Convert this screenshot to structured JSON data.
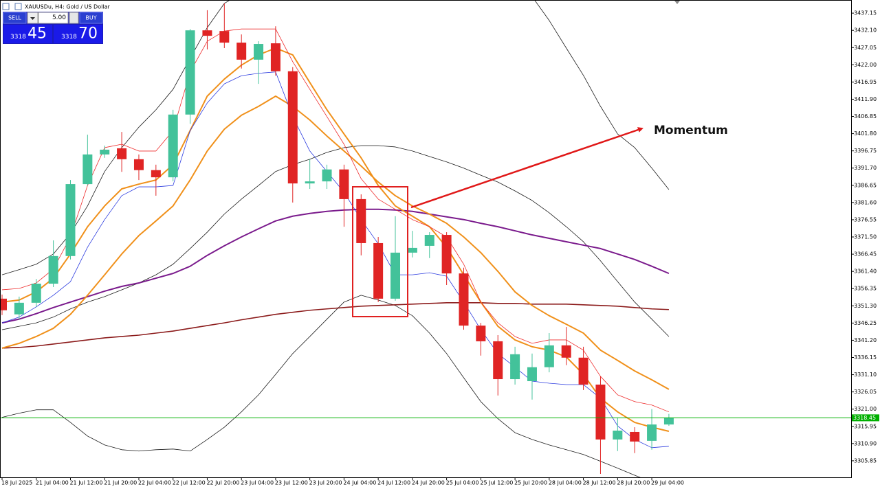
{
  "window": {
    "title": "XAUUSDu, H4:  Gold / US Dollar"
  },
  "trade_panel": {
    "sell": "SELL",
    "buy": "BUY",
    "lot": "5.00",
    "bid_main": "3318",
    "bid_pips": "45",
    "ask_main": "3318",
    "ask_pips": "70"
  },
  "chart_data": {
    "type": "candlestick",
    "annotation": "Momentum",
    "up_color": "#43c29a",
    "down_color": "#e02424",
    "categories": [
      "18 Jul 2025",
      null,
      "21 Jul 04:00",
      null,
      "21 Jul 12:00",
      null,
      "21 Jul 20:00",
      null,
      "22 Jul 04:00",
      null,
      "22 Jul 12:00",
      null,
      "22 Jul 20:00",
      null,
      "23 Jul 04:00",
      null,
      "23 Jul 12:00",
      null,
      "23 Jul 20:00",
      null,
      "24 Jul 04:00",
      null,
      "24 Jul 12:00",
      null,
      "24 Jul 20:00",
      null,
      "25 Jul 04:00",
      null,
      "25 Jul 12:00",
      null,
      "25 Jul 20:00",
      null,
      "28 Jul 04:00",
      null,
      "28 Jul 12:00",
      null,
      "28 Jul 20:00",
      null,
      "29 Jul 04:00",
      null
    ],
    "open": [
      3353.4,
      3348.8,
      3352.2,
      3357.8,
      3365.9,
      3387.0,
      3395.7,
      3397.5,
      3394.3,
      3391.1,
      3389.0,
      3407.4,
      3432.1,
      3431.9,
      3428.5,
      3423.5,
      3428.3,
      3420.1,
      3387.2,
      3387.8,
      3391.3,
      3382.6,
      3369.7,
      3353.4,
      3366.9,
      3368.9,
      3372.1,
      3360.8,
      3345.5,
      3340.9,
      3329.8,
      3329.2,
      3333.3,
      3339.7,
      3336.1,
      3328.2,
      3312.1,
      3314.3,
      3311.7,
      3316.5
    ],
    "high": [
      3354.6,
      3354.0,
      3359.2,
      3370.5,
      3388.2,
      3401.5,
      3398.3,
      3402.3,
      3395.7,
      3392.7,
      3408.8,
      3432.5,
      3438.0,
      3440.0,
      3430.9,
      3428.9,
      3433.3,
      3421.3,
      3394.3,
      3392.7,
      3392.7,
      3384.0,
      3371.5,
      3377.6,
      3373.3,
      3372.9,
      3372.9,
      3362.5,
      3346.3,
      3342.7,
      3339.3,
      3337.3,
      3343.3,
      3345.1,
      3339.3,
      3330.6,
      3318.5,
      3315.7,
      3321.0,
      3319.6
    ],
    "low": [
      3348.6,
      3347.3,
      3351.0,
      3356.8,
      3364.9,
      3386.6,
      3394.7,
      3390.6,
      3388.2,
      3383.6,
      3387.8,
      3404.7,
      3426.5,
      3426.9,
      3420.9,
      3416.4,
      3418.8,
      3381.6,
      3385.6,
      3385.6,
      3374.5,
      3366.1,
      3352.4,
      3352.8,
      3365.5,
      3365.3,
      3357.4,
      3344.3,
      3336.7,
      3325.0,
      3328.2,
      3323.8,
      3331.8,
      3333.9,
      3326.6,
      3302.0,
      3308.7,
      3308.1,
      3309.1,
      3316.1
    ],
    "close": [
      3350.0,
      3352.2,
      3357.8,
      3365.9,
      3387.0,
      3395.7,
      3397.1,
      3394.3,
      3391.1,
      3389.0,
      3407.4,
      3432.1,
      3430.5,
      3428.5,
      3423.5,
      3428.1,
      3420.1,
      3387.2,
      3387.8,
      3391.3,
      3382.6,
      3369.7,
      3353.4,
      3366.9,
      3368.3,
      3372.1,
      3360.8,
      3345.5,
      3340.9,
      3329.8,
      3337.1,
      3333.3,
      3339.7,
      3336.1,
      3328.2,
      3312.1,
      3314.7,
      3311.5,
      3316.5,
      3318.45
    ],
    "indicators": [
      {
        "color": "#1a1a1a",
        "width": 0.8,
        "values": [
          3360.4,
          3361.9,
          3363.5,
          3366.5,
          3372.5,
          3380.6,
          3390.7,
          3397.7,
          3403.7,
          3408.8,
          3414.8,
          3423.9,
          3432.9,
          3440.0,
          3443.0,
          null,
          null,
          null,
          null,
          null,
          null,
          null,
          null,
          null,
          null,
          null,
          null,
          null,
          null,
          null,
          null,
          3442.0,
          3435.0,
          3426.9,
          3418.9,
          3409.8,
          3401.7,
          3397.7,
          3391.7,
          3385.4
        ]
      },
      {
        "color": "#1a1a1a",
        "width": 0.8,
        "values": [
          3318.6,
          3319.8,
          3320.8,
          3320.8,
          3317.1,
          3313.1,
          3310.5,
          3309.1,
          3308.7,
          3309.1,
          3309.3,
          3308.7,
          3312.1,
          3315.7,
          3320.2,
          3325.2,
          3331.2,
          3337.3,
          3342.3,
          3347.4,
          3352.4,
          3354.4,
          3353.0,
          3351.4,
          3348.4,
          3343.3,
          3337.3,
          3330.2,
          3323.2,
          3318.2,
          3314.1,
          3312.1,
          3310.5,
          3309.1,
          3307.7,
          3305.7,
          3303.7,
          3301.6,
          3299.6,
          3297.6
        ]
      },
      {
        "color": "#1a1a1a",
        "width": 0.8,
        "values": [
          3344.3,
          3345.3,
          3346.3,
          3348.0,
          3350.4,
          3352.4,
          3354.0,
          3356.0,
          3358.0,
          3360.4,
          3363.5,
          3368.1,
          3372.9,
          3378.2,
          3382.6,
          3386.6,
          3390.7,
          3392.7,
          3394.3,
          3396.3,
          3397.7,
          3398.3,
          3398.3,
          3397.9,
          3396.7,
          3395.1,
          3393.5,
          3391.7,
          3389.6,
          3387.6,
          3385.0,
          3382.2,
          3378.6,
          3374.5,
          3370.1,
          3364.5,
          3358.4,
          3352.4,
          3347.4,
          3342.3
        ]
      },
      {
        "color": "#7a1a8c",
        "width": 2,
        "values": [
          3346.3,
          3347.4,
          3349.0,
          3350.8,
          3352.4,
          3354.0,
          3355.6,
          3357.0,
          3358.0,
          3359.4,
          3360.8,
          3362.9,
          3366.1,
          3368.9,
          3371.5,
          3373.9,
          3376.2,
          3377.6,
          3378.4,
          3379.0,
          3379.4,
          3379.6,
          3379.6,
          3379.4,
          3379.0,
          3378.2,
          3377.4,
          3376.6,
          3375.5,
          3374.5,
          3373.3,
          3372.1,
          3371.1,
          3370.1,
          3369.1,
          3368.1,
          3366.5,
          3364.9,
          3362.9,
          3360.8
        ]
      },
      {
        "color": "#8b1a1a",
        "width": 1.6,
        "values": [
          3338.9,
          3339.1,
          3339.5,
          3340.1,
          3340.7,
          3341.3,
          3341.9,
          3342.3,
          3342.7,
          3343.3,
          3343.9,
          3344.7,
          3345.5,
          3346.3,
          3347.2,
          3348.0,
          3348.8,
          3349.4,
          3350.0,
          3350.4,
          3350.8,
          3351.2,
          3351.4,
          3351.6,
          3351.8,
          3352.0,
          3352.2,
          3352.2,
          3352.2,
          3352.0,
          3352.0,
          3351.8,
          3351.8,
          3351.8,
          3351.6,
          3351.4,
          3351.2,
          3350.8,
          3350.4,
          3350.2
        ]
      },
      {
        "color": "#f0901a",
        "width": 2,
        "values": [
          3338.9,
          3340.3,
          3342.3,
          3344.7,
          3348.8,
          3354.4,
          3360.4,
          3366.5,
          3371.9,
          3376.2,
          3380.6,
          3388.2,
          3396.7,
          3403.1,
          3407.2,
          3409.8,
          3412.8,
          3409.8,
          3405.8,
          3401.1,
          3396.7,
          3392.3,
          3387.6,
          3383.6,
          3380.6,
          3378.2,
          3375.5,
          3371.5,
          3366.9,
          3361.4,
          3355.4,
          3351.4,
          3348.4,
          3345.9,
          3343.3,
          3338.3,
          3335.3,
          3332.2,
          3329.6,
          3326.8
        ]
      },
      {
        "color": "#f0901a",
        "width": 2,
        "values": [
          3352.4,
          3353.0,
          3355.4,
          3359.4,
          3366.5,
          3374.5,
          3380.6,
          3385.6,
          3387.0,
          3388.2,
          3392.7,
          3402.7,
          3412.8,
          3417.8,
          3421.9,
          3424.9,
          3426.9,
          3424.9,
          3416.8,
          3408.8,
          3401.7,
          3394.7,
          3386.6,
          3380.6,
          3377.6,
          3374.5,
          3368.5,
          3360.4,
          3352.4,
          3345.3,
          3341.3,
          3339.3,
          3338.3,
          3336.3,
          3331.2,
          3324.2,
          3320.2,
          3317.1,
          3315.7,
          3314.5
        ]
      },
      {
        "color": "#ee2a2a",
        "width": 0.8,
        "values": [
          3356.0,
          3356.4,
          3358.0,
          3362.1,
          3371.5,
          3386.6,
          3397.7,
          3398.7,
          3396.7,
          3396.7,
          3402.7,
          3419.9,
          3428.9,
          3431.9,
          3432.5,
          3432.5,
          3432.5,
          3422.9,
          3414.8,
          3406.8,
          3398.7,
          3388.6,
          3382.6,
          3379.6,
          3376.6,
          3374.5,
          3371.5,
          3363.5,
          3352.4,
          3346.3,
          3342.3,
          3340.3,
          3341.3,
          3341.3,
          3338.3,
          3330.6,
          3325.2,
          3323.2,
          3322.2,
          3320.2
        ]
      },
      {
        "color": "#2a3adf",
        "width": 0.8,
        "values": [
          3346.3,
          3348.0,
          3351.0,
          3354.4,
          3358.4,
          3368.5,
          3376.6,
          3383.6,
          3386.2,
          3386.2,
          3386.6,
          3402.7,
          3410.8,
          3416.4,
          3418.8,
          3419.5,
          3419.9,
          3406.8,
          3396.7,
          3390.7,
          3384.6,
          3376.6,
          3369.5,
          3360.4,
          3360.4,
          3361.0,
          3360.0,
          3352.4,
          3344.3,
          3337.3,
          3333.3,
          3329.2,
          3328.6,
          3328.2,
          3328.2,
          3324.2,
          3316.1,
          3312.1,
          3309.7,
          3310.1
        ]
      }
    ],
    "current_price": 3318.45,
    "current_price_color": "#00b000",
    "ylim": [
      3301.0,
      3441.0
    ],
    "yticks": [
      3437.15,
      {
        "value": 3432.1,
        "label": "3432.10"
      },
      3427.05,
      {
        "value": 3422,
        "label": "3422.00"
      },
      3416.95,
      {
        "value": 3411.9,
        "label": "3411.90"
      },
      3406.85,
      {
        "value": 3401.8,
        "label": "3401.80"
      },
      3396.75,
      {
        "value": 3391.7,
        "label": "3391.70"
      },
      3386.65,
      {
        "value": 3381.6,
        "label": "3381.60"
      },
      3376.55,
      {
        "value": 3371.5,
        "label": "3371.50"
      },
      3366.45,
      {
        "value": 3361.4,
        "label": "3361.40"
      },
      3356.35,
      {
        "value": 3351.3,
        "label": "3351.30"
      },
      3346.25,
      {
        "value": 3341.2,
        "label": "3341.20"
      },
      3336.15,
      {
        "value": 3331.1,
        "label": "3331.10"
      },
      3326.05,
      {
        "value": 3321,
        "label": "3321.00"
      },
      3315.95,
      {
        "value": 3310.9,
        "label": "3310.90"
      },
      3305.85
    ],
    "grid": false
  }
}
